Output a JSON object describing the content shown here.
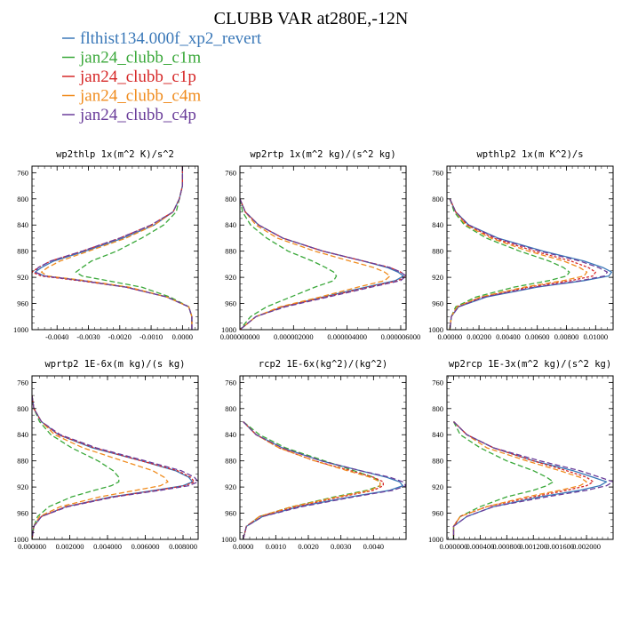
{
  "title": "CLUBB VAR at280E,-12N",
  "colors": {
    "flthist134.000f_xp2_revert": "#3a78b8",
    "jan24_clubb_c1m": "#3aa83a",
    "jan24_clubb_c1p": "#d62828",
    "jan24_clubb_c4m": "#f08c1e",
    "jan24_clubb_c4p": "#6a3d9a"
  },
  "legend": [
    {
      "label": "flthist134.000f_xp2_revert",
      "color": "#3a78b8"
    },
    {
      "label": "jan24_clubb_c1m",
      "color": "#3aa83a"
    },
    {
      "label": "jan24_clubb_c1p",
      "color": "#d62828"
    },
    {
      "label": "jan24_clubb_c4m",
      "color": "#f08c1e"
    },
    {
      "label": "jan24_clubb_c4p",
      "color": "#6a3d9a"
    }
  ],
  "chart_data": [
    {
      "type": "line",
      "title": "wp2thlp  1x(m^2 K)/s^2",
      "xlim": [
        -0.0048,
        0.0005
      ],
      "ylim": [
        1000,
        750
      ],
      "yticks": [
        760,
        800,
        840,
        880,
        920,
        960,
        1000
      ],
      "xticks": [
        -0.004,
        -0.003,
        -0.002,
        -0.001,
        0.0
      ],
      "xtick_labels": [
        "-0.0040",
        "-0.0030",
        "-0.0020",
        "-0.0010",
        "0.0000"
      ],
      "y": [
        750,
        780,
        800,
        820,
        840,
        860,
        880,
        895,
        905,
        912,
        918,
        925,
        935,
        950,
        965,
        980,
        1000
      ],
      "series": [
        {
          "name": "flthist134.000f_xp2_revert",
          "values": [
            0.0,
            0.0,
            -0.0001,
            -0.0003,
            -0.0009,
            -0.0019,
            -0.0031,
            -0.0041,
            -0.0045,
            -0.0047,
            -0.0044,
            -0.0032,
            -0.0018,
            -0.0005,
            0.0002,
            0.0003,
            0.0003
          ]
        },
        {
          "name": "jan24_clubb_c1m",
          "values": [
            0.0,
            0.0,
            -0.0001,
            -0.0002,
            -0.0006,
            -0.0013,
            -0.0021,
            -0.0029,
            -0.0032,
            -0.0034,
            -0.0032,
            -0.0024,
            -0.0013,
            -0.0004,
            0.0002,
            0.0003,
            0.0003
          ]
        },
        {
          "name": "jan24_clubb_c1p",
          "values": [
            0.0,
            0.0,
            -0.0001,
            -0.0003,
            -0.001,
            -0.002,
            -0.0032,
            -0.0042,
            -0.0046,
            -0.0048,
            -0.0045,
            -0.0033,
            -0.0018,
            -0.0005,
            0.0002,
            0.0003,
            0.0003
          ]
        },
        {
          "name": "jan24_clubb_c4m",
          "values": [
            0.0,
            0.0,
            -0.0001,
            -0.0003,
            -0.0009,
            -0.0018,
            -0.003,
            -0.0039,
            -0.0043,
            -0.0045,
            -0.0043,
            -0.0031,
            -0.0017,
            -0.0005,
            0.0002,
            0.0003,
            0.0003
          ]
        },
        {
          "name": "jan24_clubb_c4p",
          "values": [
            0.0,
            0.0,
            -0.0001,
            -0.0003,
            -0.001,
            -0.002,
            -0.0032,
            -0.0042,
            -0.0046,
            -0.0047,
            -0.0044,
            -0.0032,
            -0.0018,
            -0.0005,
            0.0002,
            0.0003,
            0.0003
          ]
        }
      ]
    },
    {
      "type": "line",
      "title": "wp2rtp  1x(m^2 kg)/(s^2 kg)",
      "xlim": [
        0.0,
        6.2e-06
      ],
      "ylim": [
        1000,
        750
      ],
      "yticks": [
        760,
        800,
        840,
        880,
        920,
        960,
        1000
      ],
      "xticks": [
        0.0,
        2e-06,
        4e-06,
        6e-06
      ],
      "xtick_labels": [
        "0.000000000",
        "0.000002000",
        "0.000004000",
        "0.000006000"
      ],
      "y": [
        800,
        820,
        840,
        860,
        880,
        895,
        905,
        912,
        918,
        925,
        935,
        950,
        965,
        980,
        1000
      ],
      "series": [
        {
          "name": "flthist134.000f_xp2_revert",
          "values": [
            0.0,
            2e-07,
            7e-07,
            1.6e-06,
            3.1e-06,
            4.6e-06,
            5.5e-06,
            5.9e-06,
            6.1e-06,
            5.8e-06,
            4.7e-06,
            3.1e-06,
            1.6e-06,
            6e-07,
            0.0
          ]
        },
        {
          "name": "jan24_clubb_c1m",
          "values": [
            0.0,
            1e-07,
            4e-07,
            1e-06,
            1.8e-06,
            2.7e-06,
            3.2e-06,
            3.5e-06,
            3.6e-06,
            3.5e-06,
            2.8e-06,
            1.9e-06,
            1e-06,
            4e-07,
            0.0
          ]
        },
        {
          "name": "jan24_clubb_c1p",
          "values": [
            0.0,
            2e-07,
            7e-07,
            1.6e-06,
            3.1e-06,
            4.6e-06,
            5.6e-06,
            6e-06,
            6.2e-06,
            5.9e-06,
            4.8e-06,
            3.2e-06,
            1.6e-06,
            6e-07,
            0.0
          ]
        },
        {
          "name": "jan24_clubb_c4m",
          "values": [
            0.0,
            2e-07,
            6e-07,
            1.4e-06,
            2.8e-06,
            4.1e-06,
            5e-06,
            5.4e-06,
            5.6e-06,
            5.4e-06,
            4.4e-06,
            3e-06,
            1.5e-06,
            6e-07,
            0.0
          ]
        },
        {
          "name": "jan24_clubb_c4p",
          "values": [
            0.0,
            2e-07,
            7e-07,
            1.6e-06,
            3.1e-06,
            4.6e-06,
            5.6e-06,
            6e-06,
            6.2e-06,
            6e-06,
            4.9e-06,
            3.3e-06,
            1.7e-06,
            6e-07,
            0.0
          ]
        }
      ]
    },
    {
      "type": "line",
      "title": "wpthlp2  1x(m K^2)/s",
      "xlim": [
        -0.0002,
        0.0112
      ],
      "ylim": [
        1000,
        750
      ],
      "yticks": [
        760,
        800,
        840,
        880,
        920,
        960,
        1000
      ],
      "xticks": [
        0.0,
        0.002,
        0.004,
        0.006,
        0.008,
        0.01
      ],
      "xtick_labels": [
        "0.00000",
        "0.00200",
        "0.00400",
        "0.00600",
        "0.00800",
        "0.01000"
      ],
      "y": [
        800,
        820,
        840,
        860,
        880,
        895,
        905,
        912,
        918,
        925,
        935,
        950,
        965,
        980,
        1000
      ],
      "series": [
        {
          "name": "flthist134.000f_xp2_revert",
          "values": [
            0.0,
            0.0004,
            0.0013,
            0.0033,
            0.0064,
            0.0092,
            0.0105,
            0.0111,
            0.0109,
            0.0092,
            0.006,
            0.0025,
            0.0006,
            0.0001,
            0.0
          ]
        },
        {
          "name": "jan24_clubb_c1m",
          "values": [
            0.0,
            0.0003,
            0.001,
            0.0025,
            0.0048,
            0.0068,
            0.0078,
            0.0082,
            0.008,
            0.0068,
            0.0044,
            0.0018,
            0.0004,
            0.0001,
            0.0
          ]
        },
        {
          "name": "jan24_clubb_c1p",
          "values": [
            0.0,
            0.0004,
            0.0012,
            0.003,
            0.0058,
            0.0083,
            0.0095,
            0.01,
            0.0098,
            0.0083,
            0.0054,
            0.0022,
            0.0005,
            0.0001,
            0.0
          ]
        },
        {
          "name": "jan24_clubb_c4m",
          "values": [
            0.0,
            0.0004,
            0.0011,
            0.0028,
            0.0054,
            0.0078,
            0.0089,
            0.0094,
            0.0092,
            0.0078,
            0.0051,
            0.0021,
            0.0005,
            0.0001,
            0.0
          ]
        },
        {
          "name": "jan24_clubb_c4p",
          "values": [
            0.0,
            0.0004,
            0.0013,
            0.0032,
            0.0062,
            0.0089,
            0.0102,
            0.0108,
            0.0106,
            0.009,
            0.0058,
            0.0024,
            0.0006,
            0.0001,
            0.0
          ]
        }
      ]
    },
    {
      "type": "line",
      "title": "wprtp2  1E-6x(m kg)/(s kg)",
      "xlim": [
        0.0,
        0.0088
      ],
      "ylim": [
        1000,
        750
      ],
      "yticks": [
        760,
        800,
        840,
        880,
        920,
        960,
        1000
      ],
      "xticks": [
        0.0,
        0.002,
        0.004,
        0.006,
        0.008
      ],
      "xtick_labels": [
        "0.000000",
        "0.002000",
        "0.004000",
        "0.006000",
        "0.008000"
      ],
      "y": [
        780,
        800,
        820,
        840,
        860,
        880,
        895,
        905,
        912,
        918,
        925,
        935,
        950,
        965,
        980,
        1000
      ],
      "series": [
        {
          "name": "flthist134.000f_xp2_revert",
          "values": [
            0.0,
            0.0001,
            0.0005,
            0.0014,
            0.0032,
            0.0058,
            0.0076,
            0.0083,
            0.0085,
            0.008,
            0.0065,
            0.0042,
            0.0018,
            0.0005,
            0.0001,
            0.0
          ]
        },
        {
          "name": "jan24_clubb_c1m",
          "values": [
            0.0,
            0.0001,
            0.0004,
            0.001,
            0.0021,
            0.0035,
            0.0043,
            0.0046,
            0.0046,
            0.0042,
            0.0033,
            0.0021,
            0.0009,
            0.0003,
            0.0001,
            0.0
          ]
        },
        {
          "name": "jan24_clubb_c1p",
          "values": [
            0.0,
            0.0001,
            0.0005,
            0.0014,
            0.0033,
            0.0058,
            0.0077,
            0.0084,
            0.0086,
            0.0081,
            0.0066,
            0.0043,
            0.0018,
            0.0005,
            0.0001,
            0.0
          ]
        },
        {
          "name": "jan24_clubb_c4m",
          "values": [
            0.0,
            0.0001,
            0.0005,
            0.0012,
            0.0027,
            0.0048,
            0.0064,
            0.007,
            0.0072,
            0.0068,
            0.0055,
            0.0036,
            0.0015,
            0.0004,
            0.0001,
            0.0
          ]
        },
        {
          "name": "jan24_clubb_c4p",
          "values": [
            0.0,
            0.0001,
            0.0005,
            0.0015,
            0.0034,
            0.006,
            0.0079,
            0.0086,
            0.0088,
            0.0083,
            0.0068,
            0.0044,
            0.0019,
            0.0005,
            0.0001,
            0.0
          ]
        }
      ]
    },
    {
      "type": "line",
      "title": "rcp2  1E-6x(kg^2)/(kg^2)",
      "xlim": [
        -0.0001,
        0.005
      ],
      "ylim": [
        1000,
        750
      ],
      "yticks": [
        760,
        800,
        840,
        880,
        920,
        960,
        1000
      ],
      "xticks": [
        0.0,
        0.001,
        0.002,
        0.003,
        0.004
      ],
      "xtick_labels": [
        "0.0000",
        "0.0010",
        "0.0020",
        "0.0030",
        "0.0040"
      ],
      "y": [
        820,
        840,
        860,
        880,
        895,
        905,
        912,
        918,
        925,
        935,
        950,
        965,
        980,
        1000
      ],
      "series": [
        {
          "name": "flthist134.000f_xp2_revert",
          "values": [
            0.0,
            0.0004,
            0.0012,
            0.0024,
            0.0036,
            0.0044,
            0.0048,
            0.0049,
            0.0045,
            0.0033,
            0.0017,
            0.0006,
            0.0001,
            0.0
          ]
        },
        {
          "name": "jan24_clubb_c1m",
          "values": [
            0.0,
            0.0005,
            0.0013,
            0.0025,
            0.0034,
            0.004,
            0.0042,
            0.0042,
            0.0038,
            0.0028,
            0.0015,
            0.0005,
            0.0001,
            0.0
          ]
        },
        {
          "name": "jan24_clubb_c1p",
          "values": [
            0.0,
            0.0004,
            0.0011,
            0.0022,
            0.0033,
            0.004,
            0.0043,
            0.0043,
            0.004,
            0.003,
            0.0016,
            0.0005,
            0.0001,
            0.0
          ]
        },
        {
          "name": "jan24_clubb_c4m",
          "values": [
            0.0,
            0.0004,
            0.0011,
            0.0022,
            0.0032,
            0.0039,
            0.0042,
            0.0042,
            0.0039,
            0.0029,
            0.0015,
            0.0005,
            0.0001,
            0.0
          ]
        },
        {
          "name": "jan24_clubb_c4p",
          "values": [
            0.0,
            0.0004,
            0.0012,
            0.0024,
            0.0036,
            0.0045,
            0.0049,
            0.005,
            0.0046,
            0.0034,
            0.0018,
            0.0006,
            0.0001,
            0.0
          ]
        }
      ]
    },
    {
      "type": "line",
      "title": "wp2rcp  1E-3x(m^2 kg)/(s^2 kg)",
      "xlim": [
        -0.0001,
        0.0024
      ],
      "ylim": [
        1000,
        750
      ],
      "yticks": [
        760,
        800,
        840,
        880,
        920,
        960,
        1000
      ],
      "xticks": [
        0.0,
        0.0004,
        0.0008,
        0.0012,
        0.0016,
        0.002
      ],
      "xtick_labels": [
        "0.000000",
        "0.000400",
        "0.000800",
        "0.001200",
        "0.001600",
        "0.002000"
      ],
      "y": [
        820,
        840,
        860,
        880,
        895,
        905,
        912,
        918,
        925,
        935,
        950,
        965,
        980,
        1000
      ],
      "series": [
        {
          "name": "flthist134.000f_xp2_revert",
          "values": [
            0.0,
            0.0002,
            0.0006,
            0.0012,
            0.0018,
            0.0021,
            0.0023,
            0.0022,
            0.0019,
            0.0013,
            0.0006,
            0.0002,
            0.0,
            0.0
          ]
        },
        {
          "name": "jan24_clubb_c1m",
          "values": [
            0.0,
            0.0001,
            0.0004,
            0.0008,
            0.0012,
            0.0014,
            0.0015,
            0.0014,
            0.0012,
            0.0008,
            0.0004,
            0.0001,
            0.0,
            0.0
          ]
        },
        {
          "name": "jan24_clubb_c1p",
          "values": [
            0.0,
            0.0002,
            0.0006,
            0.0012,
            0.0017,
            0.002,
            0.0021,
            0.002,
            0.0017,
            0.0012,
            0.0005,
            0.0001,
            0.0,
            0.0
          ]
        },
        {
          "name": "jan24_clubb_c4m",
          "values": [
            0.0,
            0.0002,
            0.0005,
            0.0011,
            0.0016,
            0.0019,
            0.002,
            0.0019,
            0.0016,
            0.0011,
            0.0005,
            0.0001,
            0.0,
            0.0
          ]
        },
        {
          "name": "jan24_clubb_c4p",
          "values": [
            0.0,
            0.0002,
            0.0006,
            0.0013,
            0.0019,
            0.0022,
            0.0024,
            0.0023,
            0.002,
            0.0014,
            0.0006,
            0.0002,
            0.0,
            0.0
          ]
        }
      ]
    }
  ]
}
